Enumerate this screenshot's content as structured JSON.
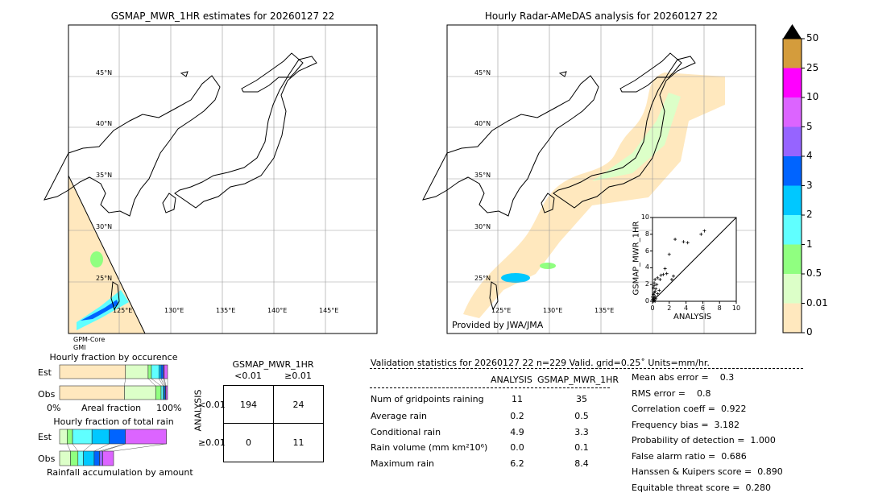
{
  "maps": {
    "left": {
      "title": "GSMAP_MWR_1HR estimates for 20260127 22",
      "sat_label_1": "GPM-Core",
      "sat_label_2": "GMI"
    },
    "right": {
      "title": "Hourly Radar-AMeDAS analysis for 20260127 22",
      "credit": "Provided by JWA/JMA"
    },
    "lat_labels": [
      "45°N",
      "40°N",
      "35°N",
      "30°N",
      "25°N"
    ],
    "lon_labels": [
      "125°E",
      "130°E",
      "135°E",
      "140°E",
      "145°E"
    ],
    "right_lon_labels": [
      "125°E",
      "130°E",
      "135°E"
    ]
  },
  "colorbar": {
    "ticks": [
      "50",
      "25",
      "10",
      "5",
      "4",
      "3",
      "2",
      "1",
      "0.5",
      "0.01",
      "0"
    ],
    "colors": [
      "#d49c3c",
      "#ff00ff",
      "#dc64ff",
      "#9664ff",
      "#0064ff",
      "#00c8ff",
      "#60ffff",
      "#90ff80",
      "#dcffc8",
      "#ffe8be"
    ],
    "extend_color": "#000000"
  },
  "chart_data": [
    {
      "type": "scatter",
      "xlabel": "ANALYSIS",
      "ylabel": "GSMAP_MWR_1HR",
      "xlim": [
        0,
        10
      ],
      "ylim": [
        0,
        10
      ],
      "xticks": [
        "0",
        "2",
        "4",
        "6",
        "8",
        "10"
      ],
      "yticks": [
        "0",
        "2",
        "4",
        "6",
        "8",
        "10"
      ],
      "points": [
        [
          6.2,
          8.4
        ],
        [
          5.8,
          8.0
        ],
        [
          2.7,
          7.4
        ],
        [
          3.7,
          7.1
        ],
        [
          4.2,
          7.0
        ],
        [
          2.0,
          5.6
        ],
        [
          1.5,
          3.9
        ],
        [
          1.0,
          3.1
        ],
        [
          1.3,
          3.2
        ],
        [
          1.7,
          3.3
        ],
        [
          2.5,
          3.0
        ],
        [
          2.3,
          2.6
        ],
        [
          0.9,
          2.6
        ],
        [
          0.6,
          2.8
        ],
        [
          0.3,
          2.6
        ],
        [
          0.2,
          2.2
        ],
        [
          0.5,
          2.0
        ],
        [
          0.4,
          1.5
        ],
        [
          0.8,
          1.3
        ],
        [
          0.3,
          1.2
        ],
        [
          0.2,
          1.0
        ],
        [
          0.1,
          0.8
        ],
        [
          0.3,
          0.6
        ],
        [
          0.2,
          0.4
        ],
        [
          0.1,
          0.3
        ],
        [
          0.0,
          0.2
        ],
        [
          0.2,
          0.1
        ],
        [
          0.1,
          0.0
        ],
        [
          0.3,
          0.0
        ],
        [
          0.0,
          0.5
        ],
        [
          0.4,
          0.3
        ],
        [
          0.6,
          0.9
        ],
        [
          0.1,
          1.6
        ],
        [
          0.2,
          1.9
        ]
      ]
    },
    {
      "type": "bar",
      "title": "Hourly fraction by occurence",
      "categories": [
        "Est",
        "Obs"
      ],
      "xlabel": "Areal fraction",
      "xtick_left": "0%",
      "xtick_right": "100%",
      "series_colors": [
        "#ffe8be",
        "#dcffc8",
        "#90ff80",
        "#60ffff",
        "#00c8ff",
        "#0064ff",
        "#9664ff",
        "#dc64ff"
      ],
      "values": {
        "Est": [
          0.61,
          0.21,
          0.03,
          0.07,
          0.02,
          0.02,
          0.01,
          0.03
        ],
        "Obs": [
          0.6,
          0.29,
          0.05,
          0.02,
          0.01,
          0.01,
          0.005,
          0.015
        ]
      }
    },
    {
      "type": "bar",
      "title": "Hourly fraction of total rain",
      "categories": [
        "Est",
        "Obs"
      ],
      "xlabel": "Rainfall accumulation by amount",
      "series_colors": [
        "#dcffc8",
        "#90ff80",
        "#60ffff",
        "#00c8ff",
        "#0064ff",
        "#9664ff",
        "#dc64ff"
      ],
      "values": {
        "Est": [
          0.07,
          0.05,
          0.18,
          0.16,
          0.15,
          0,
          0.38
        ],
        "Obs": [
          0.1,
          0.07,
          0.05,
          0.1,
          0.05,
          0.03,
          0.1
        ]
      }
    }
  ],
  "contingency": {
    "title": "GSMAP_MWR_1HR",
    "col_labels": [
      "<0.01",
      "≥0.01"
    ],
    "row_axis": "ANALYSIS",
    "row_labels": [
      "<0.01",
      "≥0.01"
    ],
    "cells": [
      [
        "194",
        "24"
      ],
      [
        "0",
        "11"
      ]
    ]
  },
  "stats": {
    "header": "Validation statistics for 20260127 22  n=229 Valid. grid=0.25˚ Units=mm/hr.",
    "col_headers": [
      "ANALYSIS",
      "GSMAP_MWR_1HR"
    ],
    "rows": [
      {
        "label": "Num of gridpoints raining",
        "a": "11",
        "g": "35"
      },
      {
        "label": "Average rain",
        "a": "0.2",
        "g": "0.5"
      },
      {
        "label": "Conditional rain",
        "a": "4.9",
        "g": "3.3"
      },
      {
        "label": "Rain volume (mm km²10⁶)",
        "a": "0.0",
        "g": "0.1"
      },
      {
        "label": "Maximum rain",
        "a": "6.2",
        "g": "8.4"
      }
    ],
    "scores": [
      "Mean abs error =    0.3",
      "RMS error =    0.8",
      "Correlation coeff =  0.922",
      "Frequency bias =  3.182",
      "Probability of detection =  1.000",
      "False alarm ratio =  0.686",
      "Hanssen & Kuipers score =  0.890",
      "Equitable threat score =  0.280"
    ]
  }
}
